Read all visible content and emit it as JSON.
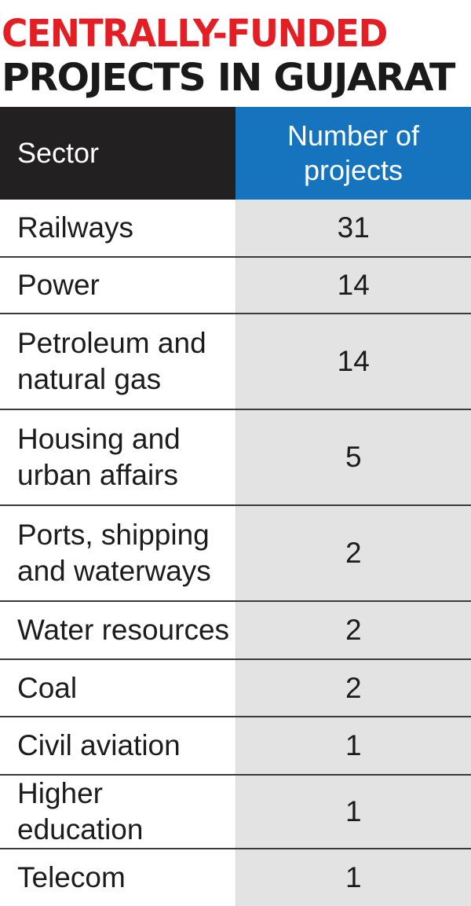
{
  "title_line_1": "CENTRALLY-FUNDED",
  "title_line_2": "PROJECTS IN GUJARAT",
  "colors": {
    "title_accent": "#e31e24",
    "title_dark": "#1a1a1a",
    "header_sector_bg": "#232021",
    "header_count_bg": "#1674bf",
    "count_column_bg": "#e3e3e3"
  },
  "chart_data": {
    "type": "table",
    "title": "CENTRALLY-FUNDED PROJECTS IN GUJARAT",
    "columns": [
      "Sector",
      "Number of projects"
    ],
    "column_header_lines": {
      "sector": [
        "Sector"
      ],
      "count": [
        "Number of",
        "projects"
      ]
    },
    "rows": [
      {
        "sector": "Railways",
        "sector_lines": [
          "Railways"
        ],
        "count": 31
      },
      {
        "sector": "Power",
        "sector_lines": [
          "Power"
        ],
        "count": 14
      },
      {
        "sector": "Petroleum and natural gas",
        "sector_lines": [
          "Petroleum and",
          "natural gas"
        ],
        "count": 14
      },
      {
        "sector": "Housing and urban affairs",
        "sector_lines": [
          "Housing and",
          "urban affairs"
        ],
        "count": 5
      },
      {
        "sector": "Ports, shipping and waterways",
        "sector_lines": [
          "Ports, shipping",
          "and waterways"
        ],
        "count": 2
      },
      {
        "sector": "Water resources",
        "sector_lines": [
          "Water resources"
        ],
        "count": 2
      },
      {
        "sector": "Coal",
        "sector_lines": [
          "Coal"
        ],
        "count": 2
      },
      {
        "sector": "Civil aviation",
        "sector_lines": [
          "Civil aviation"
        ],
        "count": 1
      },
      {
        "sector": "Higher education",
        "sector_lines": [
          "Higher education"
        ],
        "count": 1
      },
      {
        "sector": "Telecom",
        "sector_lines": [
          "Telecom"
        ],
        "count": 1
      }
    ]
  }
}
